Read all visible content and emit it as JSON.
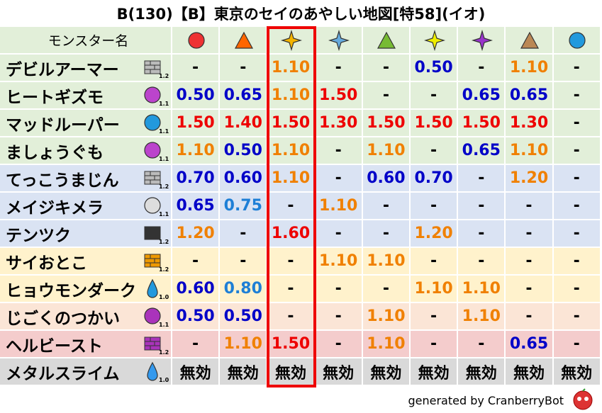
{
  "header": {
    "title": "B(130)【B】東京のセイのあやしい地図[特58](イオ)",
    "name_column": "モンスター名"
  },
  "table": {
    "rows": [
      {
        "name": "デビルアーマー",
        "multiplier": "1.2",
        "color": "#e2efd9",
        "cells": [
          "-",
          "-",
          "1.10",
          "-",
          "-",
          "0.50",
          "-",
          "1.10",
          "-"
        ]
      },
      {
        "name": "ヒートギズモ",
        "multiplier": "1.1",
        "color": "#e2efd9",
        "cells": [
          "0.50",
          "0.65",
          "1.10",
          "1.50",
          "-",
          "-",
          "0.65",
          "0.65",
          "-"
        ]
      },
      {
        "name": "マッドルーパー",
        "multiplier": "1.1",
        "color": "#e2efd9",
        "cells": [
          "1.50",
          "1.40",
          "1.50",
          "1.30",
          "1.50",
          "1.50",
          "1.50",
          "1.30",
          "-"
        ]
      },
      {
        "name": "ましょうぐも",
        "multiplier": "1.1",
        "color": "#e2efd9",
        "cells": [
          "1.10",
          "0.50",
          "1.10",
          "-",
          "1.10",
          "-",
          "0.65",
          "1.10",
          "-"
        ]
      },
      {
        "name": "てっこうまじん",
        "multiplier": "1.2",
        "color": "#dae3f3",
        "cells": [
          "0.70",
          "0.60",
          "1.10",
          "-",
          "0.60",
          "0.70",
          "-",
          "1.20",
          "-"
        ]
      },
      {
        "name": "メイジキメラ",
        "multiplier": "1.1",
        "color": "#dae3f3",
        "cells": [
          "0.65",
          "0.75",
          "-",
          "1.10",
          "-",
          "-",
          "-",
          "-",
          "-"
        ]
      },
      {
        "name": "テンツク",
        "multiplier": "1.2",
        "color": "#dae3f3",
        "cells": [
          "1.20",
          "-",
          "1.60",
          "-",
          "-",
          "1.20",
          "-",
          "-",
          "-"
        ]
      },
      {
        "name": "サイおとこ",
        "multiplier": "1.2",
        "color": "#fff2cc",
        "cells": [
          "-",
          "-",
          "-",
          "1.10",
          "1.10",
          "-",
          "-",
          "-",
          "-"
        ]
      },
      {
        "name": "ヒョウモンダーク",
        "multiplier": "1.0",
        "color": "#fff2cc",
        "cells": [
          "0.60",
          "0.80",
          "-",
          "-",
          "-",
          "1.10",
          "1.10",
          "-",
          "-"
        ]
      },
      {
        "name": "じごくのつかい",
        "multiplier": "1.1",
        "color": "#fbe5d6",
        "cells": [
          "0.50",
          "0.50",
          "-",
          "-",
          "1.10",
          "-",
          "1.10",
          "-",
          "-"
        ]
      },
      {
        "name": "ヘルビースト",
        "multiplier": "1.2",
        "color": "#f4cccc",
        "cells": [
          "-",
          "1.10",
          "1.50",
          "-",
          "1.10",
          "-",
          "-",
          "0.65",
          "-"
        ]
      },
      {
        "name": "メタルスライム",
        "multiplier": "1.0",
        "color": "#d9d9d9",
        "cells": [
          "無効",
          "無効",
          "無効",
          "無効",
          "無効",
          "無効",
          "無効",
          "無効",
          "無効"
        ]
      }
    ]
  },
  "footer": {
    "credit": "generated by CranberryBot"
  }
}
